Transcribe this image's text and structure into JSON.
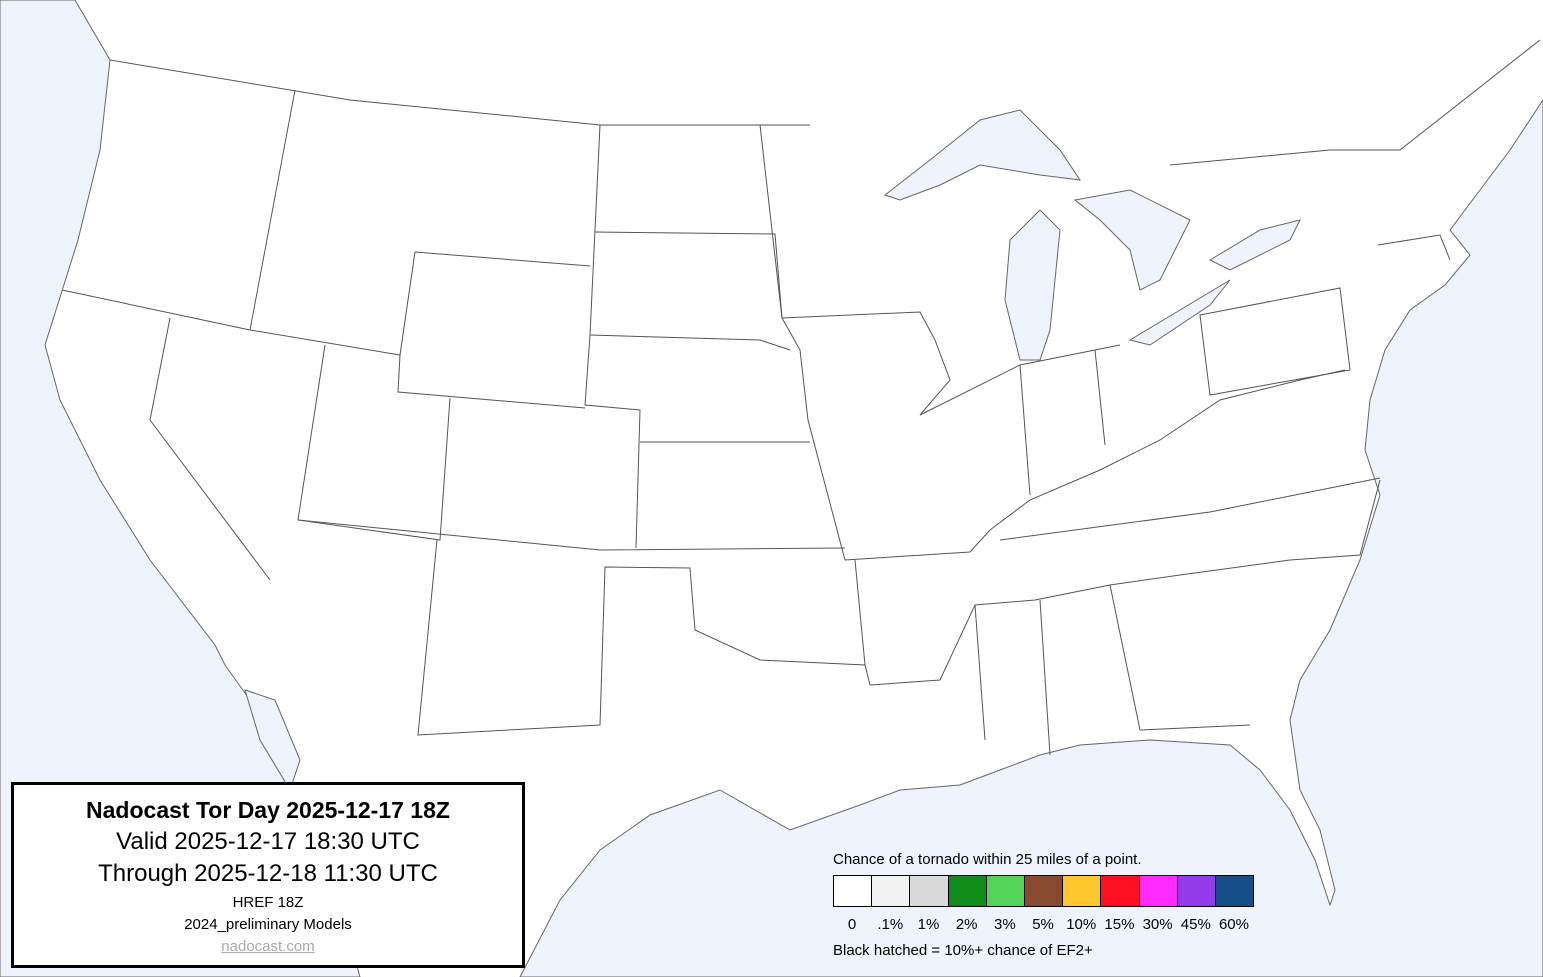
{
  "title_box": {
    "title": "Nadocast Tor Day 2025-12-17 18Z",
    "valid": "Valid 2025-12-17 18:30 UTC",
    "through": "Through 2025-12-18 11:30 UTC",
    "model": "HREF 18Z",
    "models_version": "2024_preliminary Models",
    "link": "nadocast.com"
  },
  "legend": {
    "title": "Chance of a tornado within 25 miles of a point.",
    "bins": [
      {
        "label": "0",
        "color": "#ffffff"
      },
      {
        "label": ".1%",
        "color": "#f2f2f2"
      },
      {
        "label": "1%",
        "color": "#d9d9d9"
      },
      {
        "label": "2%",
        "color": "#108a18"
      },
      {
        "label": "3%",
        "color": "#55d258"
      },
      {
        "label": "5%",
        "color": "#884a2c"
      },
      {
        "label": "10%",
        "color": "#ffc72e"
      },
      {
        "label": "15%",
        "color": "#ff0f1f"
      },
      {
        "label": "30%",
        "color": "#ff2bff"
      },
      {
        "label": "45%",
        "color": "#933be8"
      },
      {
        "label": "60%",
        "color": "#164f88"
      }
    ],
    "note": "Black hatched = 10%+ chance of EF2+"
  },
  "colors": {
    "water": "#eef3fe",
    "land": "#ffffff",
    "borders": "#555555"
  }
}
